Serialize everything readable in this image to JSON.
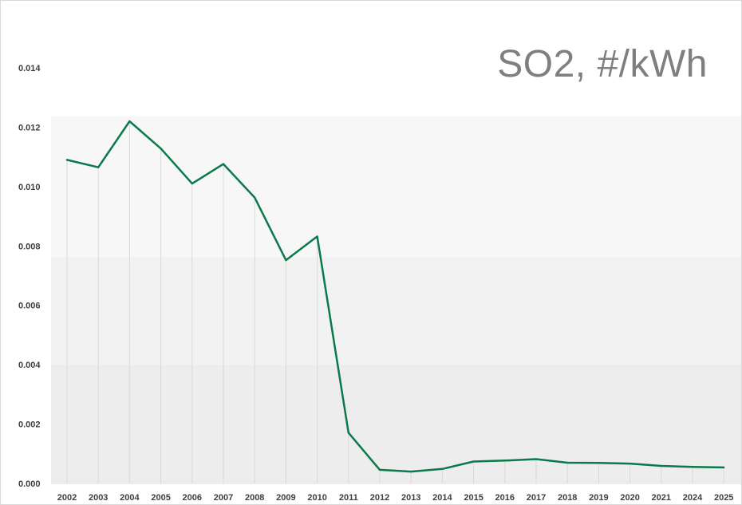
{
  "chart_data": {
    "type": "line",
    "title": "SO2, #/kWh",
    "xlabel": "",
    "ylabel": "",
    "categories": [
      "2002",
      "2003",
      "2004",
      "2005",
      "2006",
      "2007",
      "2008",
      "2009",
      "2010",
      "2011",
      "2012",
      "2013",
      "2014",
      "2015",
      "2016",
      "2017",
      "2018",
      "2019",
      "2020",
      "2021",
      "2024",
      "2025"
    ],
    "series": [
      {
        "values": [
          0.0109,
          0.01065,
          0.0122,
          0.01128,
          0.0101,
          0.01076,
          0.00963,
          0.00752,
          0.00832,
          0.00171,
          0.00046,
          0.0004,
          0.00049,
          0.00074,
          0.00077,
          0.00082,
          0.0007,
          0.00069,
          0.00067,
          0.00059,
          0.00056,
          0.00054
        ]
      }
    ],
    "ylim": [
      0,
      0.014
    ],
    "yticks": [
      "0.000",
      "0.002",
      "0.004",
      "0.006",
      "0.008",
      "0.010",
      "0.012",
      "0.014"
    ],
    "grid": "vertical drop lines",
    "legend": "none",
    "colors": {
      "line": "#0b7a4b",
      "title": "#7f7f7f",
      "tick_text": "#404040",
      "drop_line": "#d9d9d9",
      "band_light": "#f7f7f7",
      "band_mid": "#f2f2f2",
      "band_dark": "#ededed"
    }
  }
}
